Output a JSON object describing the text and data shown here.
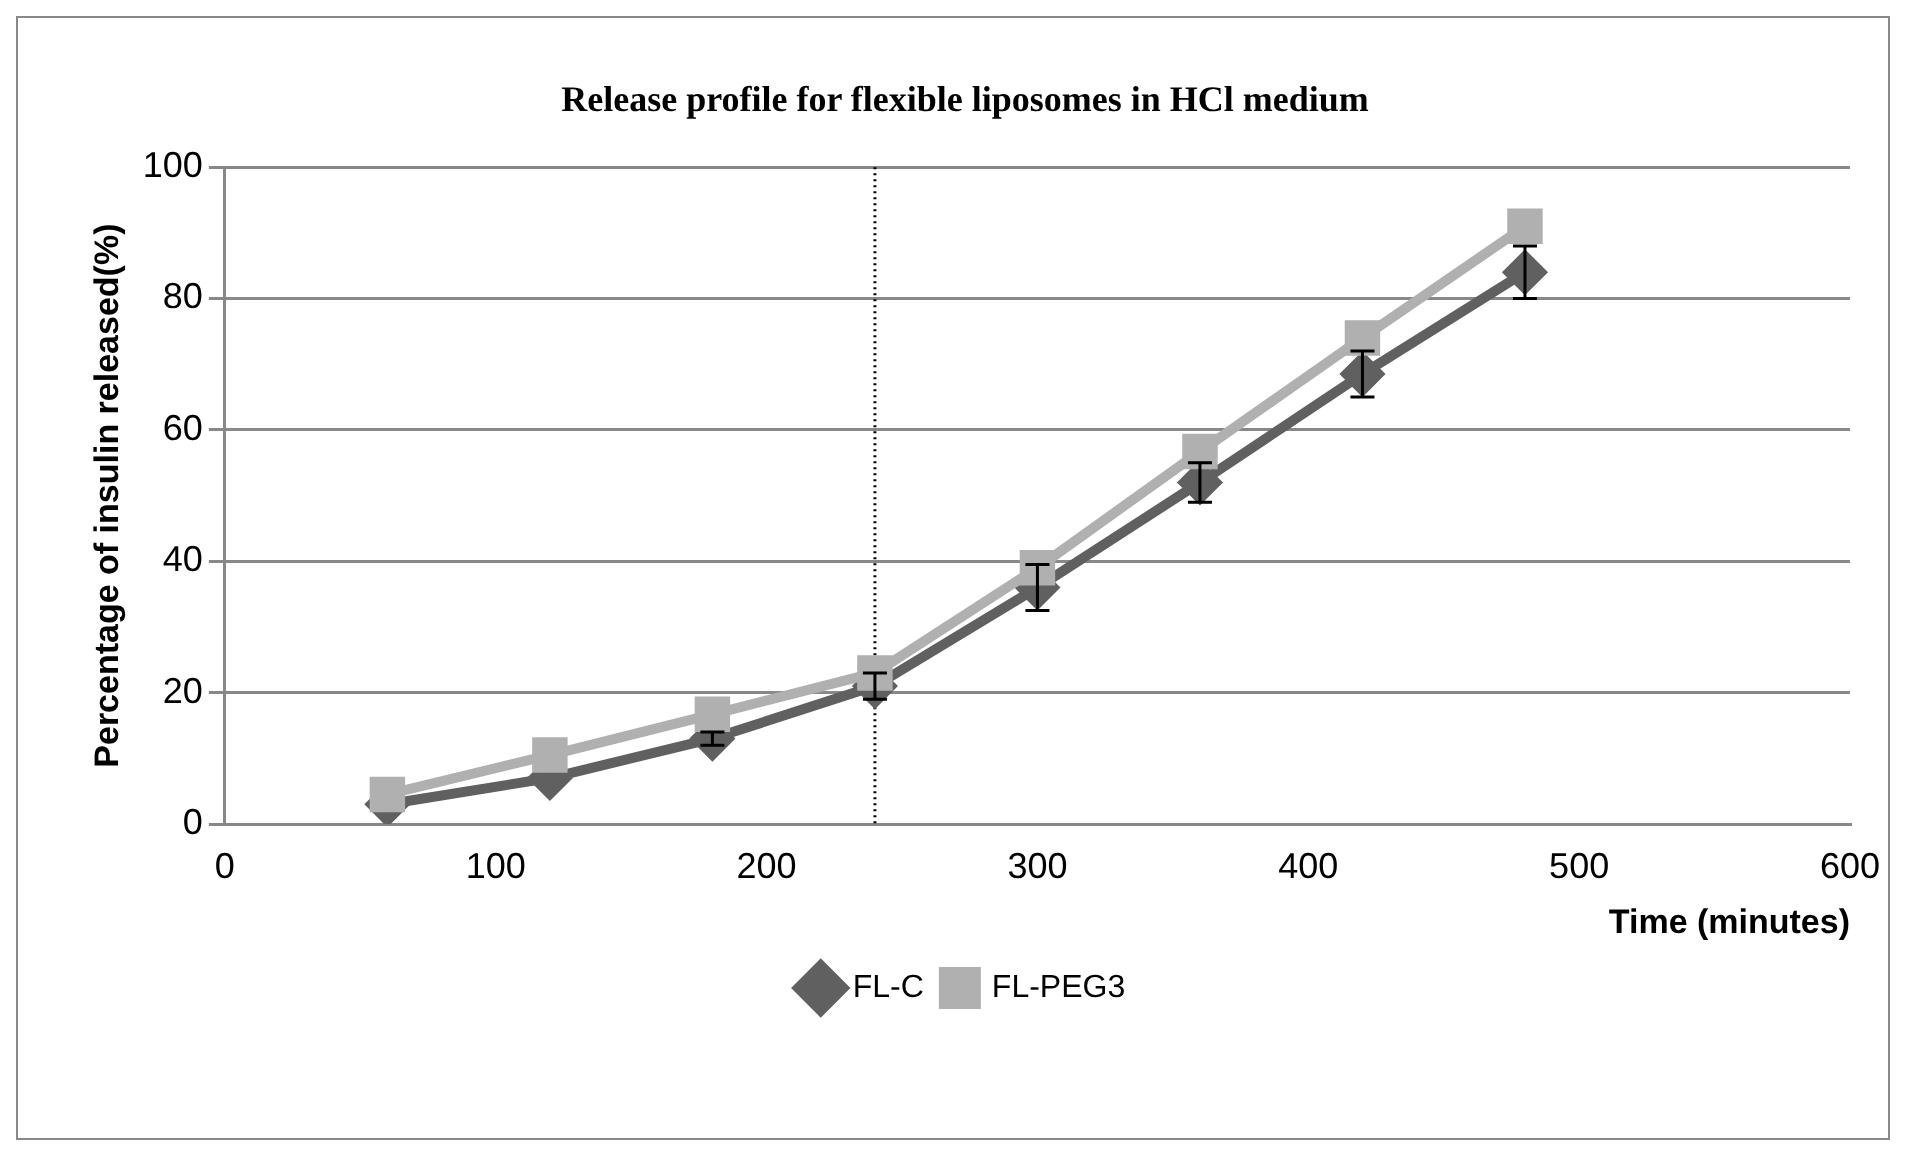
{
  "chart_data": {
    "type": "line",
    "title": "Release profile for flexible liposomes in HCl medium",
    "xlabel": "Time (minutes)",
    "ylabel": "Percentage of insulin released(%)",
    "x": [
      60,
      120,
      180,
      240,
      300,
      360,
      420,
      480
    ],
    "series": [
      {
        "name": "FL-C",
        "color": "#606060",
        "marker": "diamond",
        "values": [
          3,
          7,
          13,
          21,
          36,
          52,
          68.5,
          84
        ],
        "errors": [
          null,
          null,
          1,
          2,
          3.5,
          3,
          3.5,
          4
        ]
      },
      {
        "name": "FL-PEG3",
        "color": "#b0b0b0",
        "marker": "square",
        "values": [
          4.5,
          10.5,
          16.7,
          23,
          39,
          56.7,
          74,
          91
        ]
      }
    ],
    "xlim": [
      0,
      600
    ],
    "xticks": [
      0,
      100,
      200,
      300,
      400,
      500,
      600
    ],
    "ylim": [
      0,
      100
    ],
    "yticks": [
      0,
      20,
      40,
      60,
      80,
      100
    ],
    "ref_lines": [
      {
        "axis": "x",
        "value": 240,
        "color": "#000000",
        "line_style": "dotted"
      }
    ],
    "grid": "y",
    "legend": "bottom",
    "line_style": "solid"
  }
}
